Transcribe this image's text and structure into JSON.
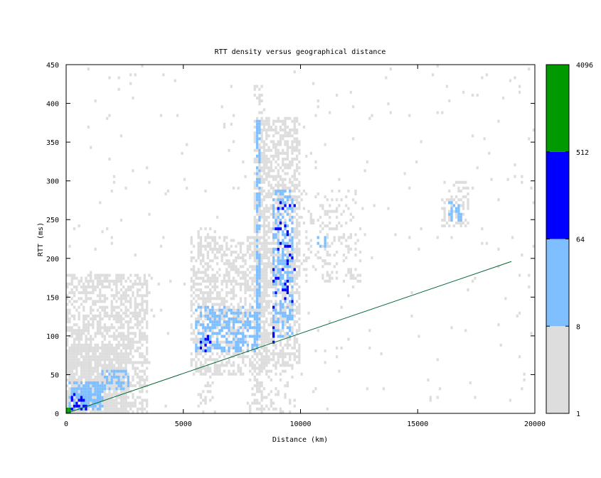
{
  "chart_data": {
    "type": "heatmap",
    "title": "RTT density versus geographical distance",
    "xlabel": "Distance (km)",
    "ylabel": "RTT (ms)",
    "xlim": [
      0,
      20000
    ],
    "ylim": [
      0,
      450
    ],
    "x_ticks": [
      "0",
      "5000",
      "10000",
      "15000",
      "20000"
    ],
    "y_ticks": [
      "0",
      "50",
      "100",
      "150",
      "200",
      "250",
      "300",
      "350",
      "400",
      "450"
    ],
    "colorbar": {
      "scale": "log",
      "tick_labels": [
        "1",
        "8",
        "64",
        "512",
        "4096"
      ],
      "bins": [
        {
          "from": 1,
          "to": 8,
          "color": "#dddddd"
        },
        {
          "from": 8,
          "to": 64,
          "color": "#80bfff"
        },
        {
          "from": 64,
          "to": 512,
          "color": "#0000ff"
        },
        {
          "from": 512,
          "to": 4096,
          "color": "#009900"
        }
      ]
    },
    "reference_line": {
      "color": "#006633",
      "points": [
        [
          0,
          0
        ],
        [
          19000,
          196
        ]
      ]
    },
    "density_regions": [
      {
        "bin": 1,
        "x": [
          0,
          3500
        ],
        "y": [
          0,
          180
        ],
        "weight": 0.55
      },
      {
        "bin": 1,
        "x": [
          0,
          2600
        ],
        "y": [
          0,
          90
        ],
        "weight": 0.8
      },
      {
        "bin": 1,
        "x": [
          5300,
          8600
        ],
        "y": [
          50,
          230
        ],
        "weight": 0.5
      },
      {
        "bin": 1,
        "x": [
          8000,
          10000
        ],
        "y": [
          60,
          380
        ],
        "weight": 0.55
      },
      {
        "bin": 1,
        "x": [
          10000,
          12600
        ],
        "y": [
          170,
          290
        ],
        "weight": 0.2
      },
      {
        "bin": 1,
        "x": [
          16000,
          17200
        ],
        "y": [
          240,
          300
        ],
        "weight": 0.3
      },
      {
        "bin": 1,
        "x": [
          5600,
          6400
        ],
        "y": [
          0,
          240
        ],
        "weight": 0.2
      },
      {
        "bin": 1,
        "x": [
          7800,
          9800
        ],
        "y": [
          0,
          60
        ],
        "weight": 0.25
      },
      {
        "bin": 1,
        "x": [
          8000,
          8400
        ],
        "y": [
          0,
          430
        ],
        "weight": 0.3
      },
      {
        "bin": 1,
        "x": [
          0,
          20000
        ],
        "y": [
          0,
          450
        ],
        "weight": 0.012
      },
      {
        "bin": 2,
        "x": [
          100,
          1600
        ],
        "y": [
          5,
          40
        ],
        "weight": 0.75
      },
      {
        "bin": 2,
        "x": [
          1500,
          2700
        ],
        "y": [
          30,
          55
        ],
        "weight": 0.5
      },
      {
        "bin": 2,
        "x": [
          5500,
          8200
        ],
        "y": [
          80,
          140
        ],
        "weight": 0.5
      },
      {
        "bin": 2,
        "x": [
          8800,
          9700
        ],
        "y": [
          100,
          290
        ],
        "weight": 0.45
      },
      {
        "bin": 2,
        "x": [
          8150,
          8300
        ],
        "y": [
          100,
          380
        ],
        "weight": 0.6
      },
      {
        "bin": 2,
        "x": [
          10700,
          11100
        ],
        "y": [
          215,
          230
        ],
        "weight": 0.5
      },
      {
        "bin": 2,
        "x": [
          16300,
          17000
        ],
        "y": [
          250,
          275
        ],
        "weight": 0.4
      },
      {
        "bin": 3,
        "x": [
          200,
          900
        ],
        "y": [
          5,
          25
        ],
        "weight": 0.45
      },
      {
        "bin": 3,
        "x": [
          5700,
          6200
        ],
        "y": [
          80,
          100
        ],
        "weight": 0.25
      },
      {
        "bin": 3,
        "x": [
          8800,
          9800
        ],
        "y": [
          135,
          275
        ],
        "weight": 0.12
      },
      {
        "bin": 3,
        "x": [
          8850,
          9000
        ],
        "y": [
          90,
          110
        ],
        "weight": 0.5
      },
      {
        "bin": 4,
        "x": [
          0,
          150
        ],
        "y": [
          0,
          5
        ],
        "weight": 0.8
      }
    ]
  }
}
